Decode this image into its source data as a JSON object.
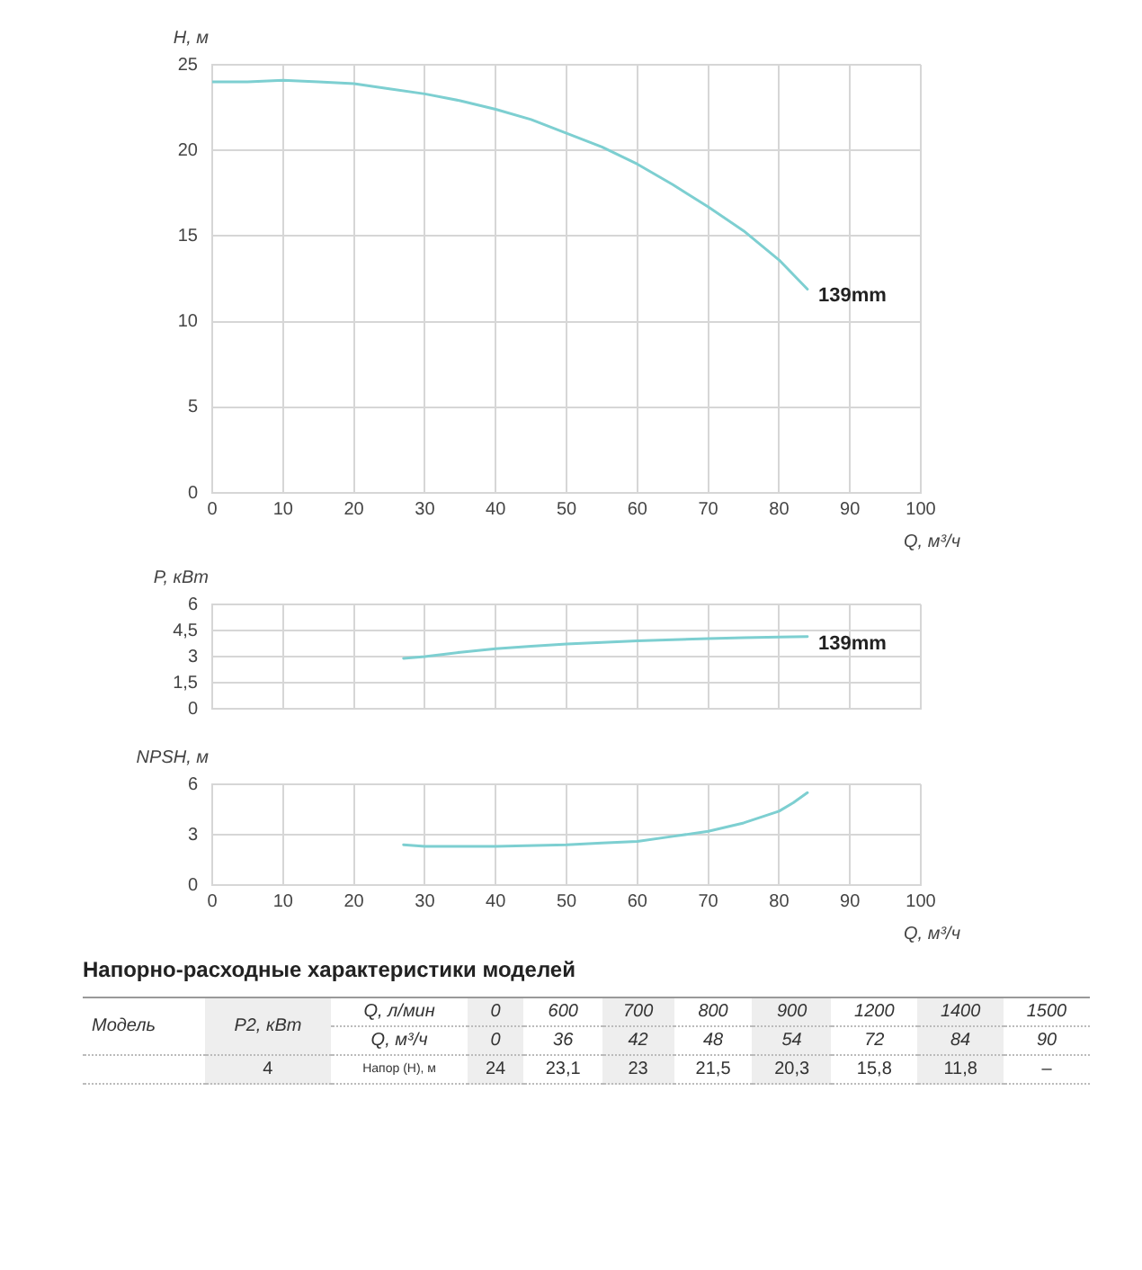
{
  "chart_data": [
    {
      "type": "line",
      "xlabel": "Q, м³/ч",
      "ylabel": "H, м",
      "x": [
        0,
        5,
        10,
        15,
        20,
        25,
        30,
        35,
        40,
        45,
        50,
        55,
        60,
        65,
        70,
        75,
        80,
        84
      ],
      "xlim": [
        0,
        100
      ],
      "xticks": [
        0,
        10,
        20,
        30,
        40,
        50,
        60,
        70,
        80,
        90,
        100
      ],
      "ylim": [
        0,
        25
      ],
      "yticks": [
        0,
        5,
        10,
        15,
        20,
        25
      ],
      "grid": true,
      "legend": false,
      "marker": "none",
      "series": [
        {
          "color": "#7dcfd1",
          "values": [
            24.0,
            24.0,
            24.1,
            24.0,
            23.9,
            23.6,
            23.3,
            22.9,
            22.4,
            21.8,
            21.0,
            20.2,
            19.2,
            18.0,
            16.7,
            15.3,
            13.6,
            11.9
          ]
        }
      ],
      "annotations": [
        {
          "text": "139mm",
          "x": 84,
          "y": 11.9
        },
        "Напорно-расходные характеристики моделей",
        "Модель",
        "P2, кВт",
        "Q, л/мин",
        "0",
        "600",
        "700",
        "800",
        "900",
        "1200",
        "1400",
        "1500",
        "Q, м³/ч",
        "0",
        "36",
        "42",
        "48",
        "54",
        "72",
        "84",
        "90",
        "4",
        "Напор (Н), м",
        "24",
        "23,1",
        "23",
        "21,5",
        "20,3",
        "15,8",
        "11,8",
        "–"
      ]
    },
    {
      "type": "line",
      "ylabel": "P, кВт",
      "x": [
        27,
        30,
        35,
        40,
        45,
        50,
        55,
        60,
        65,
        70,
        75,
        80,
        84
      ],
      "xlim": [
        0,
        100
      ],
      "xticks": [
        0,
        10,
        20,
        30,
        40,
        50,
        60,
        70,
        80,
        90,
        100
      ],
      "ylim": [
        0,
        6
      ],
      "yticks": [
        0,
        {
          "value": 1.5,
          "label": "1,5"
        },
        3,
        {
          "value": 4.5,
          "label": "4,5"
        },
        6
      ],
      "grid": true,
      "legend": false,
      "marker": "none",
      "tick_labels": "y",
      "series": [
        {
          "color": "#7dcfd1",
          "values": [
            2.9,
            3.0,
            3.25,
            3.45,
            3.6,
            3.72,
            3.82,
            3.9,
            3.97,
            4.03,
            4.08,
            4.12,
            4.15
          ]
        }
      ],
      "annotations": [
        {
          "text": "139mm",
          "x": 84,
          "y": 4.15
        }
      ]
    },
    {
      "type": "line",
      "xlabel": "Q, м³/ч",
      "ylabel": "NPSH, м",
      "x": [
        27,
        30,
        40,
        50,
        55,
        60,
        65,
        70,
        75,
        80,
        82,
        84
      ],
      "xlim": [
        0,
        100
      ],
      "xticks": [
        0,
        10,
        20,
        30,
        40,
        50,
        60,
        70,
        80,
        90,
        100
      ],
      "ylim": [
        0,
        6
      ],
      "yticks": [
        0,
        3,
        6
      ],
      "grid": true,
      "legend": false,
      "marker": "none",
      "series": [
        {
          "color": "#7dcfd1",
          "values": [
            2.4,
            2.3,
            2.3,
            2.4,
            2.5,
            2.6,
            2.9,
            3.2,
            3.7,
            4.4,
            4.9,
            5.5
          ]
        }
      ]
    }
  ]
}
